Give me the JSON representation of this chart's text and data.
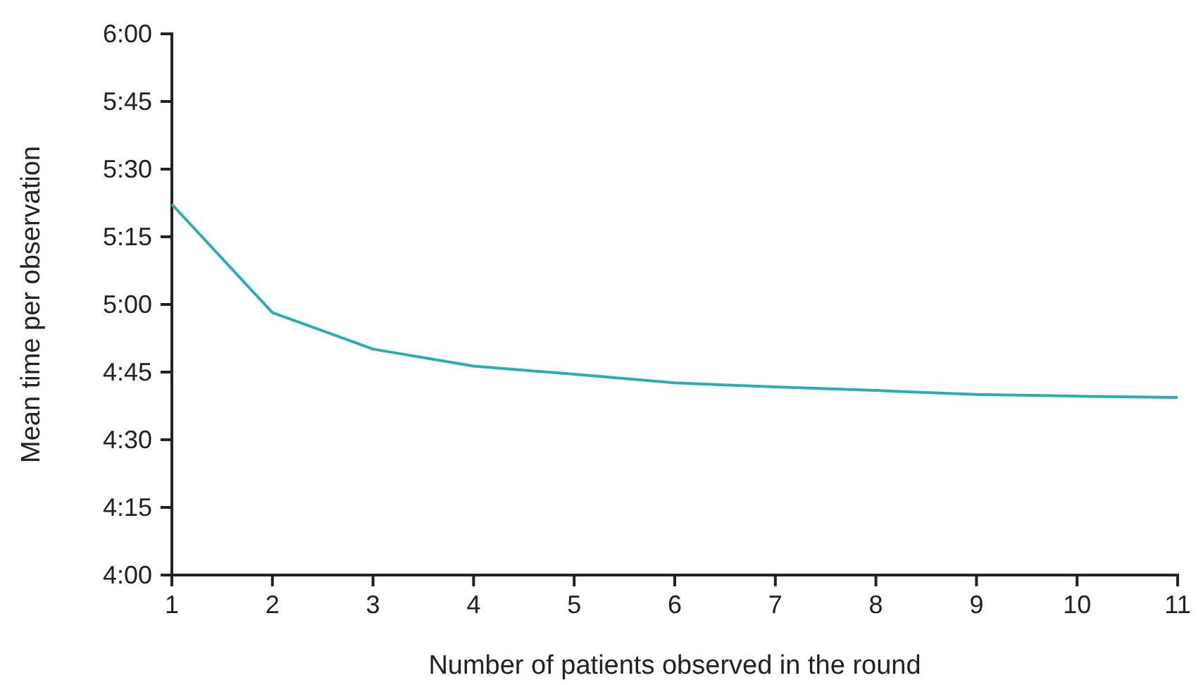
{
  "chart_data": {
    "type": "line",
    "xlabel": "Number of patients observed in the round",
    "ylabel": "Mean time per observation",
    "x": [
      1,
      2,
      3,
      4,
      5,
      6,
      7,
      8,
      9,
      10,
      11
    ],
    "series": [
      {
        "color": "#2aafb0",
        "values": [
          5.37,
          4.97,
          4.835,
          4.772,
          4.742,
          4.71,
          4.695,
          4.682,
          4.667,
          4.661,
          4.656
        ]
      }
    ],
    "xlim": [
      1,
      11
    ],
    "xticks": [
      1,
      2,
      3,
      4,
      5,
      6,
      7,
      8,
      9,
      10,
      11
    ],
    "ylim": [
      4,
      6
    ],
    "yticks": [
      {
        "value": 4,
        "label": "4:00"
      },
      {
        "value": 4.25,
        "label": "4:15"
      },
      {
        "value": 4.5,
        "label": "4:30"
      },
      {
        "value": 4.75,
        "label": "4:45"
      },
      {
        "value": 5,
        "label": "5:00"
      },
      {
        "value": 5.25,
        "label": "5:15"
      },
      {
        "value": 5.5,
        "label": "5:30"
      },
      {
        "value": 5.75,
        "label": "5:45"
      },
      {
        "value": 6,
        "label": "6:00"
      }
    ],
    "grid": false,
    "marker": "none",
    "line_style": "solid"
  }
}
